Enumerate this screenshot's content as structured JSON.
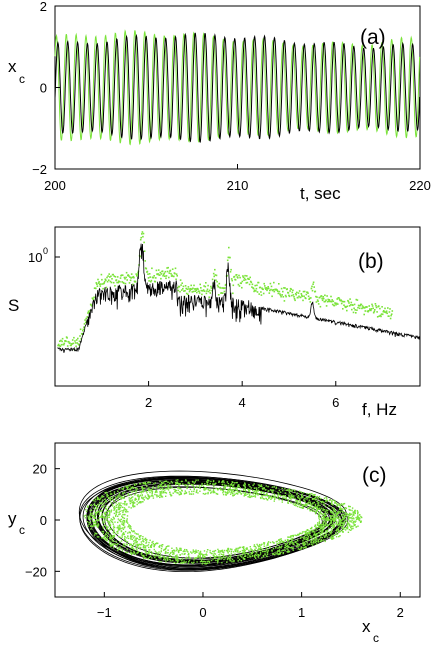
{
  "colors": {
    "series_black": "#000000",
    "series_green": "#7be33a"
  },
  "chart_data": [
    {
      "panel_label": "(a)",
      "type": "line",
      "xlabel": "t, sec",
      "ylabel": "x",
      "ylabel_sub": "c",
      "xlim": [
        200,
        220
      ],
      "ylim": [
        -2,
        2
      ],
      "xticks": [
        200,
        210,
        220
      ],
      "xtick_labels": [
        "200",
        "210",
        "220"
      ],
      "yticks": [
        2,
        0,
        -2
      ],
      "ytick_labels": [
        "2",
        "0",
        "−2"
      ],
      "grid": false,
      "series": [
        {
          "color": "#000000",
          "frequency_hz": 1.85,
          "amplitude": 1.15,
          "offset": 0
        },
        {
          "color": "#7be33a",
          "frequency_hz": 1.85,
          "amplitude": 1.2,
          "offset": 0
        }
      ]
    },
    {
      "panel_label": "(b)",
      "type": "line",
      "xlabel": "f, Hz",
      "ylabel": "S",
      "yscale": "log",
      "xlim": [
        0,
        7.8
      ],
      "xticks": [
        2,
        4,
        6
      ],
      "xtick_labels": [
        "2",
        "4",
        "6"
      ],
      "ytick_label": "10",
      "ytick_label_exp": "0",
      "grid": false,
      "peaks_hz": [
        1.85,
        3.4,
        3.7,
        5.5
      ],
      "series": [
        {
          "color": "#000000"
        },
        {
          "color": "#7be33a"
        }
      ]
    },
    {
      "panel_label": "(c)",
      "type": "scatter",
      "xlabel": "x",
      "xlabel_sub": "c",
      "ylabel": "y",
      "ylabel_sub": "c",
      "xlim": [
        -1.5,
        2.2
      ],
      "ylim": [
        -30,
        30
      ],
      "xticks": [
        -1,
        0,
        1,
        2
      ],
      "xtick_labels": [
        "−1",
        "0",
        "1",
        "2"
      ],
      "yticks": [
        20,
        0,
        -20
      ],
      "ytick_labels": [
        "20",
        "0",
        "−20"
      ],
      "grid": false,
      "series": [
        {
          "color": "#000000"
        },
        {
          "color": "#7be33a"
        }
      ]
    }
  ]
}
